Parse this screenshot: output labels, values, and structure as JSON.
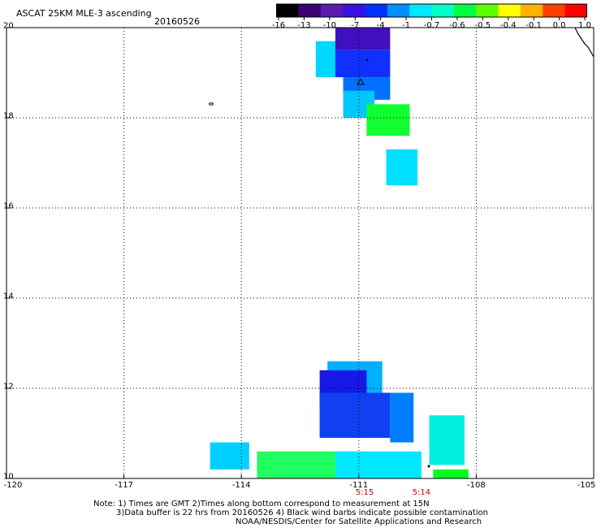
{
  "title": "ASCAT 25KM MLE-3 ascending",
  "date": "20160526",
  "colorbar": {
    "labels": [
      "-16",
      "-13",
      "-10",
      "-7",
      "-4",
      "-1",
      "-0.7",
      "-0.6",
      "-0.5",
      "-0.4",
      "-0.1",
      "0.0",
      "1.0"
    ],
    "colors": [
      "#000000",
      "#3a0070",
      "#5a1ab0",
      "#3a10e0",
      "#0030ff",
      "#0090ff",
      "#00e8ff",
      "#00ffc8",
      "#00ff40",
      "#60ff00",
      "#ffff00",
      "#ffb000",
      "#ff4000",
      "#ff0000"
    ]
  },
  "axes": {
    "lat_labels": [
      "20",
      "18",
      "16",
      "14",
      "12",
      "10"
    ],
    "lat_values": [
      20,
      18,
      16,
      14,
      12,
      10
    ],
    "lon_labels": [
      "-120",
      "-117",
      "-114",
      "-111",
      "-108",
      "-105"
    ],
    "lon_values": [
      -120,
      -117,
      -114,
      -111,
      -108,
      -105
    ],
    "grid": true
  },
  "times": [
    {
      "label": "5:15",
      "lon": -110.85
    },
    {
      "label": "5:14",
      "lon": -109.4
    }
  ],
  "notes": [
    "Note: 1) Times are GMT 2)Times along bottom correspond to measurement at 15N",
    "3)Data buffer is 22 hrs from 20160526 4) Black wind barbs indicate possible contamination",
    "NOAA/NESDIS/Center for Satellite Applications and Research"
  ],
  "swaths": [
    {
      "name": "north-cyan-west",
      "lon0": -112.1,
      "lon1": -111.3,
      "lat0": 18.9,
      "lat1": 19.7,
      "color": "#00d8ff"
    },
    {
      "name": "north-violet",
      "lon0": -111.6,
      "lon1": -110.2,
      "lat0": 19.5,
      "lat1": 20.0,
      "color": "#4010c0"
    },
    {
      "name": "north-blue-core",
      "lon0": -111.6,
      "lon1": -110.2,
      "lat0": 18.9,
      "lat1": 19.5,
      "color": "#1030ff"
    },
    {
      "name": "north-mid-blue",
      "lon0": -111.4,
      "lon1": -110.2,
      "lat0": 18.4,
      "lat1": 18.9,
      "color": "#0070ff"
    },
    {
      "name": "north-cyan-mid",
      "lon0": -111.4,
      "lon1": -110.6,
      "lat0": 18.0,
      "lat1": 18.6,
      "color": "#00c8ff"
    },
    {
      "name": "north-green",
      "lon0": -110.8,
      "lon1": -109.7,
      "lat0": 17.6,
      "lat1": 18.3,
      "color": "#10ff30"
    },
    {
      "name": "north-cyan-south",
      "lon0": -110.3,
      "lon1": -109.5,
      "lat0": 16.5,
      "lat1": 17.3,
      "color": "#00e0ff"
    },
    {
      "name": "south-cyan-top",
      "lon0": -111.8,
      "lon1": -110.4,
      "lat0": 11.9,
      "lat1": 12.6,
      "color": "#00b0ff"
    },
    {
      "name": "south-blue-top",
      "lon0": -112.0,
      "lon1": -110.8,
      "lat0": 11.6,
      "lat1": 12.4,
      "color": "#1818e8"
    },
    {
      "name": "south-blue-mid",
      "lon0": -112.0,
      "lon1": -110.2,
      "lat0": 10.9,
      "lat1": 11.9,
      "color": "#1040f0"
    },
    {
      "name": "south-lblue-mid",
      "lon0": -110.2,
      "lon1": -109.6,
      "lat0": 10.8,
      "lat1": 11.9,
      "color": "#0080ff"
    },
    {
      "name": "south-cyan-left",
      "lon0": -114.8,
      "lon1": -113.8,
      "lat0": 10.2,
      "lat1": 10.8,
      "color": "#00d0ff"
    },
    {
      "name": "south-green-band",
      "lon0": -113.6,
      "lon1": -111.2,
      "lat0": 10.0,
      "lat1": 10.6,
      "color": "#20ff60"
    },
    {
      "name": "south-cyan-band",
      "lon0": -111.6,
      "lon1": -109.4,
      "lat0": 10.0,
      "lat1": 10.6,
      "color": "#00e8ff"
    },
    {
      "name": "south-teal-east",
      "lon0": -109.2,
      "lon1": -108.3,
      "lat0": 10.3,
      "lat1": 11.4,
      "color": "#00f0e0"
    },
    {
      "name": "south-green-east",
      "lon0": -109.1,
      "lon1": -108.2,
      "lat0": 10.0,
      "lat1": 10.2,
      "color": "#00ff20"
    }
  ]
}
